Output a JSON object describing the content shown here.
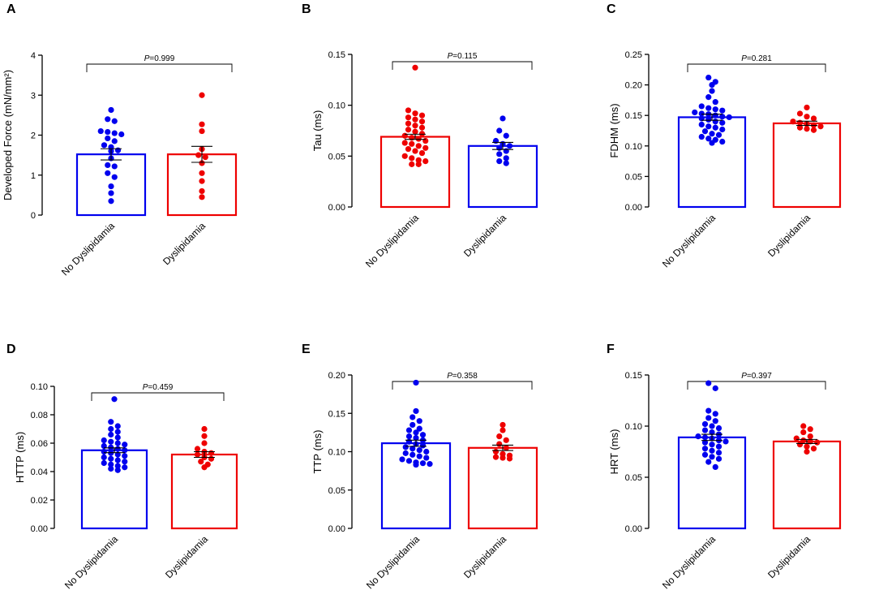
{
  "colors": {
    "no_dys": "#0000ee",
    "dys": "#ee0000",
    "axis": "#000000"
  },
  "chart_data": [
    {
      "type": "bar",
      "panel": "A",
      "ylabel": "Developed Force (mN/mm²)",
      "ylim": [
        0,
        4
      ],
      "yticks": [
        0,
        1,
        2,
        3,
        4
      ],
      "ytick_labels": [
        "0",
        "1",
        "2",
        "3",
        "4"
      ],
      "categories": [
        "No Dyslipidamia",
        "Dyslipidamia"
      ],
      "p_prefix": "P",
      "p_value": "=0.999",
      "bar_colors": [
        "no_dys",
        "dys"
      ],
      "series": [
        {
          "name": "No Dyslipidamia",
          "mean": 1.52,
          "sem": 0.14,
          "points": [
            2.63,
            2.4,
            2.35,
            2.1,
            2.08,
            2.05,
            2.02,
            1.92,
            1.85,
            1.75,
            1.7,
            1.62,
            1.6,
            1.42,
            1.25,
            1.22,
            1.05,
            0.95,
            0.72,
            0.55,
            0.35
          ]
        },
        {
          "name": "Dyslipidamia",
          "mean": 1.52,
          "sem": 0.2,
          "points": [
            3.0,
            2.27,
            2.1,
            1.65,
            1.5,
            1.45,
            1.3,
            1.05,
            0.85,
            0.6,
            0.45
          ]
        }
      ]
    },
    {
      "type": "bar",
      "panel": "B",
      "ylabel": "Tau (ms)",
      "ylim": [
        0,
        0.15
      ],
      "yticks": [
        0,
        0.05,
        0.1,
        0.15
      ],
      "ytick_labels": [
        "0.00",
        "0.05",
        "0.10",
        "0.15"
      ],
      "categories": [
        "No Dyslipidamia",
        "Dyslipidamia"
      ],
      "p_prefix": "P",
      "p_value": "=0.115",
      "bar_colors": [
        "dys",
        "no_dys"
      ],
      "series": [
        {
          "name": "No Dyslipidamia",
          "mean": 0.069,
          "sem": 0.0025,
          "points": [
            0.137,
            0.095,
            0.092,
            0.09,
            0.088,
            0.086,
            0.084,
            0.082,
            0.08,
            0.078,
            0.076,
            0.074,
            0.072,
            0.07,
            0.068,
            0.067,
            0.065,
            0.063,
            0.062,
            0.06,
            0.058,
            0.057,
            0.055,
            0.053,
            0.05,
            0.048,
            0.046,
            0.045,
            0.042,
            0.042
          ]
        },
        {
          "name": "Dyslipidamia",
          "mean": 0.06,
          "sem": 0.0035,
          "points": [
            0.087,
            0.075,
            0.07,
            0.065,
            0.062,
            0.06,
            0.058,
            0.055,
            0.052,
            0.048,
            0.045,
            0.043
          ]
        }
      ]
    },
    {
      "type": "bar",
      "panel": "C",
      "ylabel": "FDHM (ms)",
      "ylim": [
        0,
        0.25
      ],
      "yticks": [
        0,
        0.05,
        0.1,
        0.15,
        0.2,
        0.25
      ],
      "ytick_labels": [
        "0.00",
        "0.05",
        "0.10",
        "0.15",
        "0.20",
        "0.25"
      ],
      "categories": [
        "No Dyslipidamia",
        "Dyslipidamia"
      ],
      "p_prefix": "P",
      "p_value": "=0.281",
      "bar_colors": [
        "no_dys",
        "dys"
      ],
      "series": [
        {
          "name": "No Dyslipidamia",
          "mean": 0.147,
          "sem": 0.005,
          "points": [
            0.212,
            0.205,
            0.2,
            0.19,
            0.18,
            0.172,
            0.165,
            0.162,
            0.16,
            0.158,
            0.155,
            0.153,
            0.152,
            0.15,
            0.148,
            0.147,
            0.145,
            0.143,
            0.14,
            0.138,
            0.135,
            0.132,
            0.13,
            0.127,
            0.124,
            0.12,
            0.118,
            0.115,
            0.112,
            0.11,
            0.107,
            0.105
          ]
        },
        {
          "name": "Dyslipidamia",
          "mean": 0.137,
          "sem": 0.0035,
          "points": [
            0.163,
            0.153,
            0.148,
            0.145,
            0.14,
            0.138,
            0.136,
            0.134,
            0.132,
            0.13,
            0.128,
            0.126
          ]
        }
      ]
    },
    {
      "type": "bar",
      "panel": "D",
      "ylabel": "HTTP (ms)",
      "ylim": [
        0,
        0.1
      ],
      "yticks": [
        0,
        0.02,
        0.04,
        0.06,
        0.08,
        0.1
      ],
      "ytick_labels": [
        "0.00",
        "0.02",
        "0.04",
        "0.06",
        "0.08",
        "0.10"
      ],
      "categories": [
        "No Dyslipidamia",
        "Dyslipidamia"
      ],
      "p_prefix": "P",
      "p_value": "=0.459",
      "bar_colors": [
        "no_dys",
        "dys"
      ],
      "series": [
        {
          "name": "No Dyslipidamia",
          "mean": 0.055,
          "sem": 0.0017,
          "points": [
            0.091,
            0.075,
            0.072,
            0.07,
            0.068,
            0.066,
            0.064,
            0.062,
            0.061,
            0.06,
            0.059,
            0.058,
            0.057,
            0.056,
            0.055,
            0.054,
            0.053,
            0.052,
            0.051,
            0.05,
            0.049,
            0.048,
            0.047,
            0.046,
            0.045,
            0.044,
            0.043,
            0.042,
            0.041
          ]
        },
        {
          "name": "Dyslipidamia",
          "mean": 0.052,
          "sem": 0.002,
          "points": [
            0.07,
            0.065,
            0.06,
            0.056,
            0.054,
            0.053,
            0.052,
            0.05,
            0.049,
            0.047,
            0.045,
            0.043
          ]
        }
      ]
    },
    {
      "type": "bar",
      "panel": "E",
      "ylabel": "TTP (ms)",
      "ylim": [
        0,
        0.2
      ],
      "yticks": [
        0,
        0.05,
        0.1,
        0.15,
        0.2
      ],
      "ytick_labels": [
        "0.00",
        "0.05",
        "0.10",
        "0.15",
        "0.20"
      ],
      "categories": [
        "No Dyslipidamia",
        "Dyslipidamia"
      ],
      "p_prefix": "P",
      "p_value": "=0.358",
      "bar_colors": [
        "no_dys",
        "dys"
      ],
      "series": [
        {
          "name": "No Dyslipidamia",
          "mean": 0.111,
          "sem": 0.004,
          "points": [
            0.19,
            0.153,
            0.145,
            0.14,
            0.135,
            0.13,
            0.128,
            0.125,
            0.122,
            0.12,
            0.118,
            0.115,
            0.113,
            0.11,
            0.108,
            0.106,
            0.104,
            0.102,
            0.1,
            0.098,
            0.096,
            0.094,
            0.092,
            0.09,
            0.088,
            0.086,
            0.085,
            0.084,
            0.083
          ]
        },
        {
          "name": "Dyslipidamia",
          "mean": 0.105,
          "sem": 0.0035,
          "points": [
            0.135,
            0.128,
            0.12,
            0.115,
            0.11,
            0.105,
            0.1,
            0.097,
            0.095,
            0.093,
            0.092,
            0.091
          ]
        }
      ]
    },
    {
      "type": "bar",
      "panel": "F",
      "ylabel": "HRT (ms)",
      "ylim": [
        0,
        0.15
      ],
      "yticks": [
        0,
        0.05,
        0.1,
        0.15
      ],
      "ytick_labels": [
        "0.00",
        "0.05",
        "0.10",
        "0.15"
      ],
      "categories": [
        "No Dyslipidamia",
        "Dyslipidamia"
      ],
      "p_prefix": "P",
      "p_value": "=0.397",
      "bar_colors": [
        "no_dys",
        "dys"
      ],
      "series": [
        {
          "name": "No Dyslipidamia",
          "mean": 0.089,
          "sem": 0.003,
          "points": [
            0.142,
            0.137,
            0.115,
            0.112,
            0.108,
            0.105,
            0.102,
            0.1,
            0.098,
            0.096,
            0.094,
            0.092,
            0.09,
            0.089,
            0.088,
            0.086,
            0.085,
            0.084,
            0.082,
            0.08,
            0.078,
            0.076,
            0.074,
            0.072,
            0.07,
            0.068,
            0.065,
            0.06
          ]
        },
        {
          "name": "Dyslipidamia",
          "mean": 0.085,
          "sem": 0.002,
          "points": [
            0.1,
            0.097,
            0.094,
            0.09,
            0.088,
            0.086,
            0.085,
            0.084,
            0.082,
            0.08,
            0.078,
            0.075
          ]
        }
      ]
    }
  ]
}
